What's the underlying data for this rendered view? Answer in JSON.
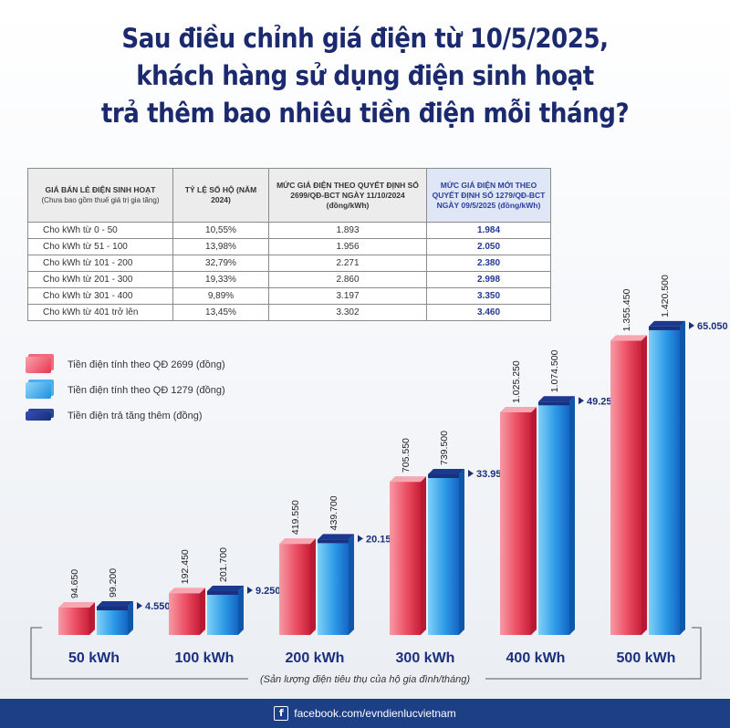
{
  "title": {
    "line1": "Sau điều chỉnh giá điện từ 10/5/2025,",
    "line2": "khách hàng sử dụng điện sinh hoạt",
    "line3": "trả thêm bao nhiêu tiền điện mỗi tháng?"
  },
  "table": {
    "headers": {
      "tier": "GIÁ BÁN LẺ ĐIỆN SINH HOẠT",
      "tier_note": "(Chưa bao gồm thuế giá trị gia tăng)",
      "share": "TỶ LỆ SỐ HỘ (NĂM 2024)",
      "old_price": "MỨC GIÁ ĐIỆN THEO QUYẾT ĐỊNH SỐ 2699/QĐ-BCT NGÀY 11/10/2024 (đồng/kWh)",
      "new_price": "MỨC GIÁ ĐIỆN MỚI THEO QUYẾT ĐỊNH SỐ 1279/QĐ-BCT NGÀY 09/5/2025 (đồng/kWh)"
    },
    "rows": [
      {
        "tier": "Cho kWh từ 0 - 50",
        "share": "10,55%",
        "old": "1.893",
        "new": "1.984"
      },
      {
        "tier": "Cho kWh từ  51 - 100",
        "share": "13,98%",
        "old": "1.956",
        "new": "2.050"
      },
      {
        "tier": "Cho kWh từ 101 - 200",
        "share": "32,79%",
        "old": "2.271",
        "new": "2.380"
      },
      {
        "tier": "Cho kWh từ 201 - 300",
        "share": "19,33%",
        "old": "2.860",
        "new": "2.998"
      },
      {
        "tier": "Cho kWh từ 301 - 400",
        "share": "9,89%",
        "old": "3.197",
        "new": "3.350"
      },
      {
        "tier": "Cho kWh từ 401 trở lên",
        "share": "13,45%",
        "old": "3.302",
        "new": "3.460"
      }
    ]
  },
  "legend": {
    "old": "Tiền điện tính theo QĐ 2699 (đồng)",
    "new": "Tiền điện tính theo QĐ 1279 (đồng)",
    "increase": "Tiền điện trả tăng thêm (đồng)"
  },
  "chart_data": {
    "type": "bar",
    "categories": [
      "50 kWh",
      "100 kWh",
      "200 kWh",
      "300 kWh",
      "400 kWh",
      "500 kWh"
    ],
    "series": [
      {
        "name": "Tiền điện tính theo QĐ 2699 (đồng)",
        "values": [
          94650,
          192450,
          419550,
          705550,
          1025250,
          1355450
        ],
        "labels": [
          "94.650",
          "192.450",
          "419.550",
          "705.550",
          "1.025.250",
          "1.355.450"
        ],
        "color": "#e8364f"
      },
      {
        "name": "Tiền điện tính theo QĐ 1279 (đồng)",
        "values": [
          99200,
          201700,
          439700,
          739500,
          1074500,
          1420500
        ],
        "labels": [
          "99.200",
          "201.700",
          "439.700",
          "739.500",
          "1.074.500",
          "1.420.500"
        ],
        "color": "#1e8fe0"
      },
      {
        "name": "Tiền điện trả tăng thêm (đồng)",
        "values": [
          4550,
          9250,
          20150,
          33950,
          49250,
          65050
        ],
        "labels": [
          "4.550",
          "9.250",
          "20.150",
          "33.950",
          "49.250",
          "65.050"
        ],
        "color": "#1b2f7e"
      }
    ],
    "xlabel": "(Sản lượng điện tiêu thụ của hộ gia đình/tháng)",
    "ylabel": ""
  },
  "footer": {
    "icon": "facebook-icon",
    "text": "facebook.com/evndienlucvietnam"
  }
}
